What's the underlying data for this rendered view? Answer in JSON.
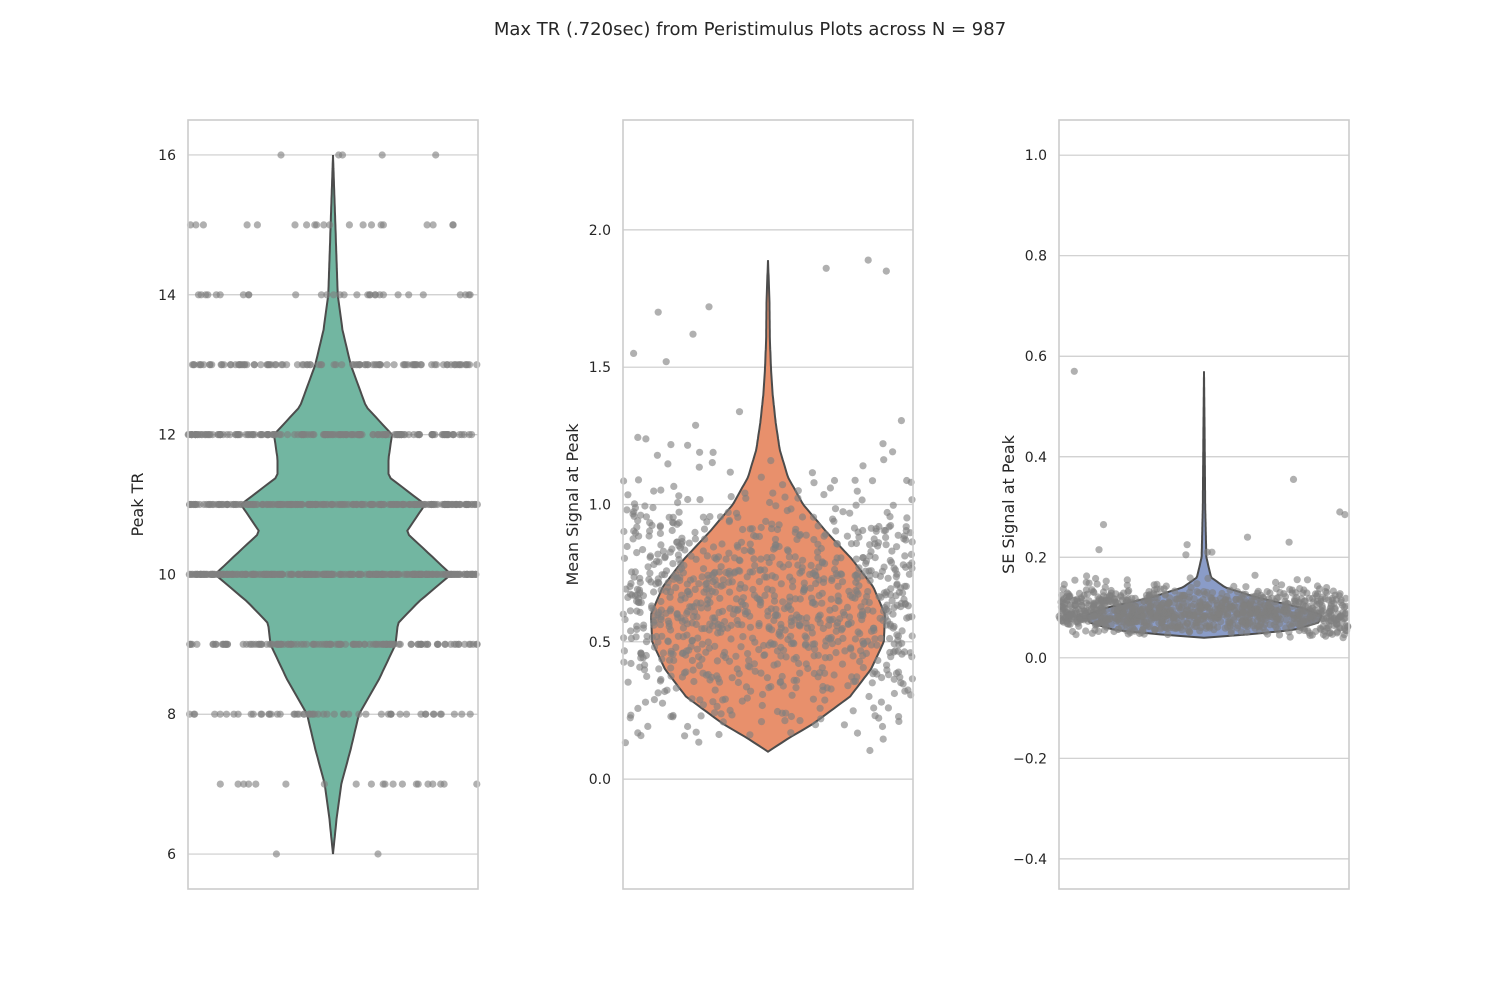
{
  "figure": {
    "title": "Max TR (.720sec) from Peristimulus Plots across N = 987"
  },
  "chart_data": [
    {
      "type": "violin",
      "ylabel": "Peak TR",
      "xlabel": "",
      "ylim": [
        5.5,
        16.5
      ],
      "yticks": [
        6,
        8,
        10,
        12,
        14,
        16
      ],
      "ytick_labels": [
        "6",
        "8",
        "10",
        "12",
        "14",
        "16"
      ],
      "grid": true,
      "violin_color": "#72b6a1",
      "n": 987,
      "discrete": true,
      "value_counts": [
        {
          "value": 6,
          "count": 2
        },
        {
          "value": 7,
          "count": 20
        },
        {
          "value": 8,
          "count": 55
        },
        {
          "value": 9,
          "count": 130
        },
        {
          "value": 10,
          "count": 250
        },
        {
          "value": 11,
          "count": 215
        },
        {
          "value": 12,
          "count": 160
        },
        {
          "value": 13,
          "count": 100
        },
        {
          "value": 14,
          "count": 30
        },
        {
          "value": 15,
          "count": 20
        },
        {
          "value": 16,
          "count": 5
        }
      ],
      "density": [
        {
          "y": 6.0,
          "w": 0.0
        },
        {
          "y": 6.5,
          "w": 0.03
        },
        {
          "y": 7.0,
          "w": 0.07
        },
        {
          "y": 7.5,
          "w": 0.15
        },
        {
          "y": 8.0,
          "w": 0.22
        },
        {
          "y": 8.5,
          "w": 0.39
        },
        {
          "y": 9.0,
          "w": 0.53
        },
        {
          "y": 9.3,
          "w": 0.55
        },
        {
          "y": 9.6,
          "w": 0.72
        },
        {
          "y": 10.0,
          "w": 1.0
        },
        {
          "y": 10.35,
          "w": 0.78
        },
        {
          "y": 10.6,
          "w": 0.62
        },
        {
          "y": 11.0,
          "w": 0.78
        },
        {
          "y": 11.4,
          "w": 0.47
        },
        {
          "y": 11.65,
          "w": 0.47
        },
        {
          "y": 12.0,
          "w": 0.5
        },
        {
          "y": 12.4,
          "w": 0.28
        },
        {
          "y": 13.0,
          "w": 0.15
        },
        {
          "y": 13.5,
          "w": 0.08
        },
        {
          "y": 14.0,
          "w": 0.04
        },
        {
          "y": 15.0,
          "w": 0.02
        },
        {
          "y": 16.0,
          "w": 0.0
        }
      ]
    },
    {
      "type": "violin",
      "ylabel": "Mean Signal at Peak",
      "xlabel": "",
      "ylim": [
        -0.4,
        2.4
      ],
      "yticks": [
        0.0,
        0.5,
        1.0,
        1.5,
        2.0
      ],
      "ytick_labels": [
        "0.0",
        "0.5",
        "1.0",
        "1.5",
        "2.0"
      ],
      "grid": true,
      "violin_color": "#e8906c",
      "n": 987,
      "discrete": false,
      "distribution": {
        "mean": 0.63,
        "sd": 0.22,
        "min": 0.1,
        "max": 1.89
      },
      "outliers": [
        1.85,
        1.89,
        1.86,
        1.72,
        1.7,
        1.62,
        1.55,
        1.52
      ],
      "density": [
        {
          "y": 0.1,
          "w": 0.0
        },
        {
          "y": 0.15,
          "w": 0.18
        },
        {
          "y": 0.2,
          "w": 0.38
        },
        {
          "y": 0.3,
          "w": 0.7
        },
        {
          "y": 0.4,
          "w": 0.88
        },
        {
          "y": 0.5,
          "w": 0.99
        },
        {
          "y": 0.6,
          "w": 1.0
        },
        {
          "y": 0.7,
          "w": 0.9
        },
        {
          "y": 0.8,
          "w": 0.72
        },
        {
          "y": 0.9,
          "w": 0.5
        },
        {
          "y": 1.0,
          "w": 0.3
        },
        {
          "y": 1.1,
          "w": 0.17
        },
        {
          "y": 1.2,
          "w": 0.1
        },
        {
          "y": 1.3,
          "w": 0.065
        },
        {
          "y": 1.4,
          "w": 0.04
        },
        {
          "y": 1.5,
          "w": 0.025
        },
        {
          "y": 1.6,
          "w": 0.016
        },
        {
          "y": 1.75,
          "w": 0.012
        },
        {
          "y": 1.89,
          "w": 0.0
        }
      ]
    },
    {
      "type": "violin",
      "ylabel": "SE Signal at Peak",
      "xlabel": "",
      "ylim": [
        -0.46,
        1.07
      ],
      "yticks": [
        -0.4,
        -0.2,
        0.0,
        0.2,
        0.4,
        0.6,
        0.8,
        1.0
      ],
      "ytick_labels": [
        "−0.4",
        "−0.2",
        "0.0",
        "0.2",
        "0.4",
        "0.6",
        "0.8",
        "1.0"
      ],
      "grid": true,
      "violin_color": "#8a9cc8",
      "n": 987,
      "discrete": false,
      "distribution": {
        "mean": 0.09,
        "sd": 0.025,
        "min": 0.04,
        "max": 0.57
      },
      "outliers": [
        0.57,
        0.355,
        0.29,
        0.285,
        0.265,
        0.24,
        0.23,
        0.225,
        0.215,
        0.21,
        0.21,
        0.205
      ],
      "density": [
        {
          "y": 0.04,
          "w": 0.0
        },
        {
          "y": 0.045,
          "w": 0.3
        },
        {
          "y": 0.055,
          "w": 0.75
        },
        {
          "y": 0.07,
          "w": 0.97
        },
        {
          "y": 0.085,
          "w": 1.0
        },
        {
          "y": 0.1,
          "w": 0.82
        },
        {
          "y": 0.12,
          "w": 0.45
        },
        {
          "y": 0.14,
          "w": 0.18
        },
        {
          "y": 0.16,
          "w": 0.06
        },
        {
          "y": 0.2,
          "w": 0.02
        },
        {
          "y": 0.3,
          "w": 0.01
        },
        {
          "y": 0.45,
          "w": 0.005
        },
        {
          "y": 0.57,
          "w": 0.0
        }
      ]
    }
  ]
}
